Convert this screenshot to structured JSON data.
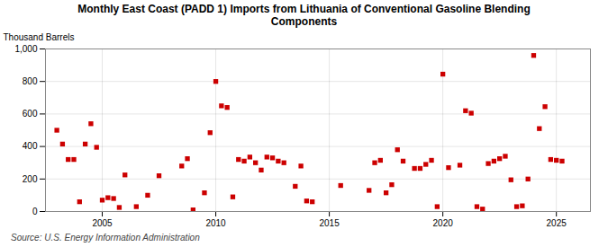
{
  "chart_data": {
    "type": "scatter",
    "title": "Monthly East Coast (PADD 1) Imports from Lithuania of Conventional Gasoline Blending\nComponents",
    "ylabel": "Thousand Barrels",
    "source": "Source: U.S. Energy Information Administration",
    "color": "#cc0000",
    "marker": "square",
    "grid": true,
    "xlim": [
      2002.5,
      2026.5
    ],
    "ylim": [
      0,
      1000
    ],
    "xticks": [
      2005,
      2010,
      2015,
      2020,
      2025
    ],
    "yticks": [
      0,
      200,
      400,
      600,
      800,
      {
        "value": 1000,
        "label": "1,000"
      }
    ],
    "x": [
      2003.0,
      2003.25,
      2003.5,
      2003.75,
      2004.0,
      2004.25,
      2004.5,
      2004.75,
      2005.0,
      2005.25,
      2005.5,
      2005.75,
      2006.0,
      2006.5,
      2007.0,
      2007.5,
      2008.5,
      2008.75,
      2009.0,
      2009.5,
      2009.75,
      2010.0,
      2010.25,
      2010.5,
      2010.75,
      2011.0,
      2011.25,
      2011.5,
      2011.75,
      2012.0,
      2012.25,
      2012.5,
      2012.75,
      2013.0,
      2013.5,
      2013.75,
      2014.0,
      2014.25,
      2015.5,
      2016.75,
      2017.0,
      2017.25,
      2017.5,
      2017.75,
      2018.0,
      2018.25,
      2018.75,
      2019.0,
      2019.25,
      2019.5,
      2019.75,
      2020.0,
      2020.25,
      2020.75,
      2021.0,
      2021.25,
      2021.5,
      2021.75,
      2022.0,
      2022.25,
      2022.5,
      2022.75,
      2023.0,
      2023.25,
      2023.5,
      2023.75,
      2024.0,
      2024.25,
      2024.5,
      2024.75,
      2025.0,
      2025.25
    ],
    "values": [
      500,
      415,
      320,
      320,
      60,
      415,
      540,
      395,
      70,
      85,
      80,
      25,
      225,
      30,
      100,
      220,
      280,
      325,
      10,
      115,
      485,
      800,
      650,
      640,
      90,
      320,
      310,
      335,
      300,
      255,
      335,
      330,
      310,
      300,
      155,
      280,
      65,
      60,
      160,
      130,
      300,
      315,
      115,
      165,
      380,
      310,
      265,
      265,
      290,
      315,
      30,
      845,
      270,
      285,
      620,
      605,
      30,
      15,
      295,
      310,
      325,
      340,
      195,
      30,
      35,
      200,
      960,
      510,
      645,
      320,
      315,
      310
    ]
  }
}
